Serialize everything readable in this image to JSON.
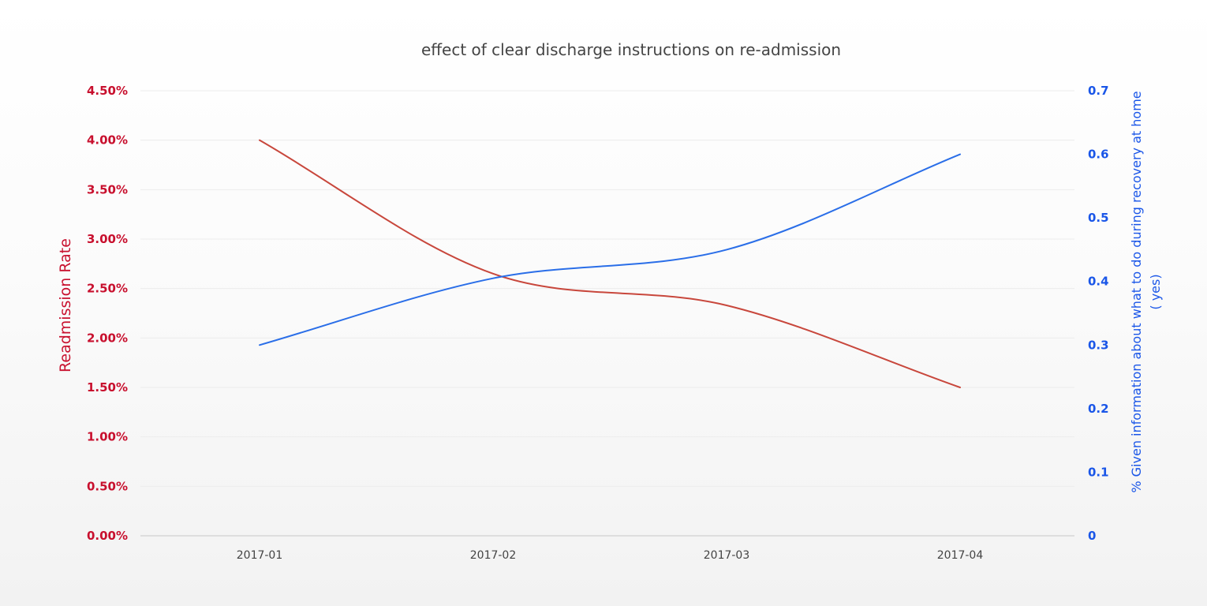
{
  "chart_data": {
    "type": "line",
    "title": "effect of clear discharge instructions on re-admission",
    "categories": [
      "2017-01",
      "2017-02",
      "2017-03",
      "2017-04"
    ],
    "y_left": {
      "label": "Readmission Rate",
      "range": [
        0,
        0.045
      ],
      "ticks": [
        0,
        0.005,
        0.01,
        0.015,
        0.02,
        0.025,
        0.03,
        0.035,
        0.04,
        0.045
      ],
      "tick_labels": [
        "0.00%",
        "0.50%",
        "1.00%",
        "1.50%",
        "2.00%",
        "2.50%",
        "3.00%",
        "3.50%",
        "4.00%",
        "4.50%"
      ],
      "color": "#c8102e"
    },
    "y_right": {
      "label_lines": [
        "% Given information about what to do during recovery at home",
        "( yes)"
      ],
      "range": [
        0,
        0.7
      ],
      "ticks": [
        0,
        0.1,
        0.2,
        0.3,
        0.4,
        0.5,
        0.6,
        0.7
      ],
      "tick_labels": [
        "0",
        "0.1",
        "0.2",
        "0.3",
        "0.4",
        "0.5",
        "0.6",
        "0.7"
      ],
      "color": "#1a56e8"
    },
    "series": [
      {
        "axis": "left",
        "color": "#c8473c",
        "values": [
          0.04,
          0.0265,
          0.0233,
          0.015
        ]
      },
      {
        "axis": "right",
        "color": "#2a6ee8",
        "values": [
          0.3,
          0.405,
          0.45,
          0.6
        ]
      }
    ],
    "grid": true,
    "legend": "none"
  }
}
